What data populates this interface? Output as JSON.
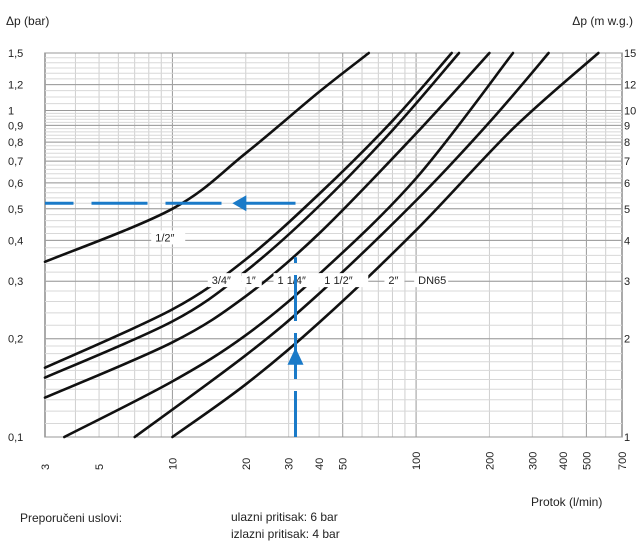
{
  "chart_data": {
    "type": "line",
    "y_axis_left_label": "Δp (bar)",
    "y_axis_right_label": "Δp (m w.g.)",
    "x_axis_label": "Protok   (l/min)",
    "x_scale": "log",
    "y_scale": "log",
    "xlim": [
      3,
      700
    ],
    "ylim": [
      0.1,
      1.5
    ],
    "grid": true,
    "x_ticks": [
      3,
      5,
      10,
      20,
      30,
      40,
      50,
      100,
      200,
      300,
      400,
      500,
      700
    ],
    "y_ticks_left": [
      {
        "value": 1.5,
        "label": "1,5"
      },
      {
        "value": 1.2,
        "label": "1,2"
      },
      {
        "value": 1.0,
        "label": "1"
      },
      {
        "value": 0.9,
        "label": "0,9"
      },
      {
        "value": 0.8,
        "label": "0,8"
      },
      {
        "value": 0.7,
        "label": "0,7"
      },
      {
        "value": 0.6,
        "label": "0,6"
      },
      {
        "value": 0.5,
        "label": "0,5"
      },
      {
        "value": 0.4,
        "label": "0,4"
      },
      {
        "value": 0.3,
        "label": "0,3"
      },
      {
        "value": 0.2,
        "label": "0,2"
      },
      {
        "value": 0.1,
        "label": "0,1"
      }
    ],
    "y_ticks_right": [
      {
        "value": 1.5,
        "label": "15"
      },
      {
        "value": 1.2,
        "label": "12"
      },
      {
        "value": 1.0,
        "label": "10"
      },
      {
        "value": 0.9,
        "label": "9"
      },
      {
        "value": 0.8,
        "label": "8"
      },
      {
        "value": 0.7,
        "label": "7"
      },
      {
        "value": 0.6,
        "label": "6"
      },
      {
        "value": 0.5,
        "label": "5"
      },
      {
        "value": 0.4,
        "label": "4"
      },
      {
        "value": 0.3,
        "label": "3"
      },
      {
        "value": 0.2,
        "label": "2"
      },
      {
        "value": 0.1,
        "label": "1"
      }
    ],
    "series": [
      {
        "name": "1/2″",
        "label_at": [
          8.5,
          0.4
        ],
        "points": [
          [
            3,
            0.344
          ],
          [
            10,
            0.5
          ],
          [
            20,
            0.74
          ],
          [
            40,
            1.14
          ],
          [
            64,
            1.5
          ]
        ]
      },
      {
        "name": "3/4″",
        "label_at": [
          14.5,
          0.296
        ],
        "points": [
          [
            3,
            0.163
          ],
          [
            10,
            0.246
          ],
          [
            20,
            0.35
          ],
          [
            40,
            0.555
          ],
          [
            80,
            0.93
          ],
          [
            140,
            1.5
          ]
        ]
      },
      {
        "name": "1″",
        "label_at": [
          20,
          0.296
        ],
        "points": [
          [
            3,
            0.152
          ],
          [
            10,
            0.226
          ],
          [
            20,
            0.322
          ],
          [
            40,
            0.51
          ],
          [
            80,
            0.87
          ],
          [
            150,
            1.5
          ]
        ]
      },
      {
        "name": "1 1/4″",
        "label_at": [
          27,
          0.296
        ],
        "points": [
          [
            3,
            0.132
          ],
          [
            10,
            0.195
          ],
          [
            20,
            0.27
          ],
          [
            40,
            0.42
          ],
          [
            100,
            0.85
          ],
          [
            200,
            1.5
          ]
        ]
      },
      {
        "name": "1 1/2″",
        "label_at": [
          42,
          0.296
        ],
        "points": [
          [
            3.6,
            0.1
          ],
          [
            10,
            0.148
          ],
          [
            20,
            0.205
          ],
          [
            40,
            0.315
          ],
          [
            100,
            0.62
          ],
          [
            250,
            1.5
          ]
        ]
      },
      {
        "name": "2″",
        "label_at": [
          77,
          0.296
        ],
        "points": [
          [
            7,
            0.1
          ],
          [
            20,
            0.178
          ],
          [
            40,
            0.275
          ],
          [
            100,
            0.53
          ],
          [
            200,
            0.92
          ],
          [
            350,
            1.5
          ]
        ]
      },
      {
        "name": "DN65",
        "label_at": [
          102,
          0.296
        ],
        "points": [
          [
            10,
            0.1
          ],
          [
            20,
            0.145
          ],
          [
            40,
            0.224
          ],
          [
            100,
            0.43
          ],
          [
            250,
            0.88
          ],
          [
            560,
            1.5
          ]
        ]
      }
    ],
    "example_lookup": {
      "flow": 32,
      "pressure_drop": 0.52
    }
  },
  "notes": {
    "title": "Preporučeni uslovi:",
    "inlet": "ulazni pritisak: 6 bar",
    "outlet": "izlazni pritisak: 4 bar"
  }
}
